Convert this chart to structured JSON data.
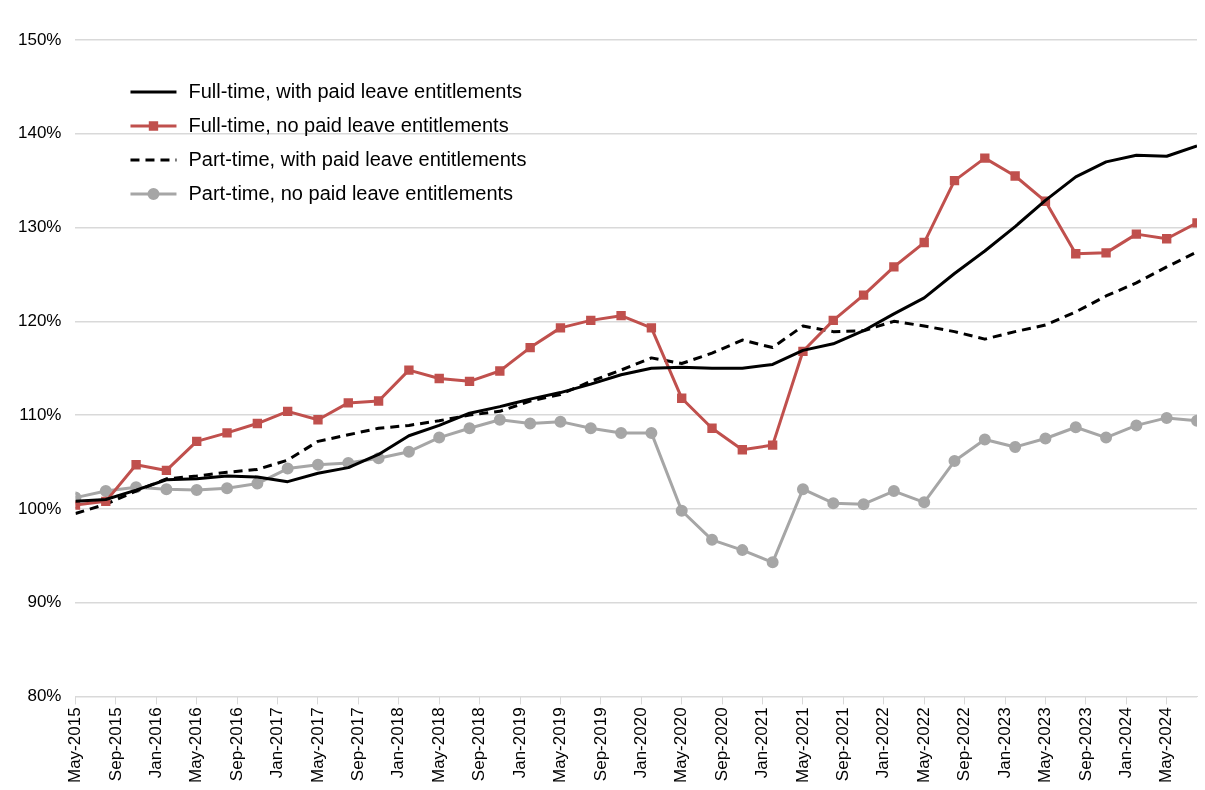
{
  "chart_data": {
    "type": "line",
    "x": [
      "2015-05",
      "2015-08",
      "2015-11",
      "2016-02",
      "2016-05",
      "2016-08",
      "2016-11",
      "2017-02",
      "2017-05",
      "2017-08",
      "2017-11",
      "2018-02",
      "2018-05",
      "2018-08",
      "2018-11",
      "2019-02",
      "2019-05",
      "2019-08",
      "2019-11",
      "2020-02",
      "2020-05",
      "2020-08",
      "2020-11",
      "2021-02",
      "2021-05",
      "2021-08",
      "2021-11",
      "2022-02",
      "2022-05",
      "2022-08",
      "2022-11",
      "2023-02",
      "2023-05",
      "2023-08",
      "2023-11",
      "2024-02",
      "2024-05",
      "2024-08"
    ],
    "series": [
      {
        "name": "Full-time, with paid leave entitlements",
        "color": "#000000",
        "marker": "none",
        "line_style": "solid",
        "values": [
          100.8,
          101.0,
          102.0,
          103.1,
          103.2,
          103.5,
          103.4,
          102.9,
          103.8,
          104.4,
          105.8,
          107.8,
          108.9,
          110.2,
          110.9,
          111.7,
          112.4,
          113.3,
          114.3,
          115.0,
          115.1,
          115.0,
          115.0,
          115.4,
          116.9,
          117.6,
          119.0,
          120.8,
          122.5,
          125.1,
          127.5,
          130.1,
          132.9,
          135.4,
          137.0,
          137.7,
          137.6,
          138.7
        ]
      },
      {
        "name": "Full-time, no paid leave entitlements",
        "color": "#c0504d",
        "marker": "square",
        "line_style": "solid",
        "values": [
          100.4,
          100.8,
          104.7,
          104.1,
          107.2,
          108.1,
          109.1,
          110.4,
          109.5,
          111.3,
          111.5,
          114.8,
          113.9,
          113.6,
          114.7,
          117.2,
          119.3,
          120.1,
          120.6,
          119.3,
          111.8,
          108.6,
          106.3,
          106.8,
          116.8,
          120.1,
          122.8,
          125.8,
          128.4,
          135.0,
          137.4,
          135.5,
          132.8,
          127.2,
          127.3,
          129.3,
          128.8,
          130.5
        ]
      },
      {
        "name": "Part-time, with paid leave entitlements",
        "color": "#000000",
        "marker": "none",
        "line_style": "dashed",
        "values": [
          99.5,
          100.5,
          101.9,
          103.2,
          103.5,
          103.9,
          104.2,
          105.2,
          107.2,
          107.9,
          108.6,
          108.9,
          109.4,
          110.0,
          110.4,
          111.5,
          112.2,
          113.6,
          114.8,
          116.1,
          115.5,
          116.6,
          118.0,
          117.2,
          119.5,
          118.9,
          119.0,
          120.0,
          119.5,
          118.9,
          118.1,
          118.9,
          119.6,
          121.0,
          122.7,
          124.1,
          125.8,
          127.4
        ]
      },
      {
        "name": "Part-time, no paid leave entitlements",
        "color": "#a6a6a6",
        "marker": "circle",
        "line_style": "solid",
        "values": [
          101.2,
          101.9,
          102.3,
          102.1,
          102.0,
          102.2,
          102.7,
          104.3,
          104.7,
          104.9,
          105.4,
          106.1,
          107.6,
          108.6,
          109.5,
          109.1,
          109.3,
          108.6,
          108.1,
          108.1,
          99.8,
          96.7,
          95.6,
          94.3,
          102.1,
          100.6,
          100.5,
          101.9,
          100.7,
          105.1,
          107.4,
          106.6,
          107.5,
          108.7,
          107.6,
          108.9,
          109.7,
          109.4
        ]
      }
    ],
    "xlim": [
      "2015-05",
      "2024-08"
    ],
    "xticks": [
      {
        "value": "2015-05",
        "label": "May-2015"
      },
      {
        "value": "2015-09",
        "label": "Sep-2015"
      },
      {
        "value": "2016-01",
        "label": "Jan-2016"
      },
      {
        "value": "2016-05",
        "label": "May-2016"
      },
      {
        "value": "2016-09",
        "label": "Sep-2016"
      },
      {
        "value": "2017-01",
        "label": "Jan-2017"
      },
      {
        "value": "2017-05",
        "label": "May-2017"
      },
      {
        "value": "2017-09",
        "label": "Sep-2017"
      },
      {
        "value": "2018-01",
        "label": "Jan-2018"
      },
      {
        "value": "2018-05",
        "label": "May-2018"
      },
      {
        "value": "2018-09",
        "label": "Sep-2018"
      },
      {
        "value": "2019-01",
        "label": "Jan-2019"
      },
      {
        "value": "2019-05",
        "label": "May-2019"
      },
      {
        "value": "2019-09",
        "label": "Sep-2019"
      },
      {
        "value": "2020-01",
        "label": "Jan-2020"
      },
      {
        "value": "2020-05",
        "label": "May-2020"
      },
      {
        "value": "2020-09",
        "label": "Sep-2020"
      },
      {
        "value": "2021-01",
        "label": "Jan-2021"
      },
      {
        "value": "2021-05",
        "label": "May-2021"
      },
      {
        "value": "2021-09",
        "label": "Sep-2021"
      },
      {
        "value": "2022-01",
        "label": "Jan-2022"
      },
      {
        "value": "2022-05",
        "label": "May-2022"
      },
      {
        "value": "2022-09",
        "label": "Sep-2022"
      },
      {
        "value": "2023-01",
        "label": "Jan-2023"
      },
      {
        "value": "2023-05",
        "label": "May-2023"
      },
      {
        "value": "2023-09",
        "label": "Sep-2023"
      },
      {
        "value": "2024-01",
        "label": "Jan-2024"
      },
      {
        "value": "2024-05",
        "label": "May-2024"
      }
    ],
    "ylim": [
      80,
      150
    ],
    "yticks": [
      {
        "value": 80,
        "label": "80%"
      },
      {
        "value": 90,
        "label": "90%"
      },
      {
        "value": 100,
        "label": "100%"
      },
      {
        "value": 110,
        "label": "110%"
      },
      {
        "value": 120,
        "label": "120%"
      },
      {
        "value": 130,
        "label": "130%"
      },
      {
        "value": 140,
        "label": "140%"
      },
      {
        "value": 150,
        "label": "150%"
      }
    ],
    "grid": "y",
    "legend": "top left"
  }
}
